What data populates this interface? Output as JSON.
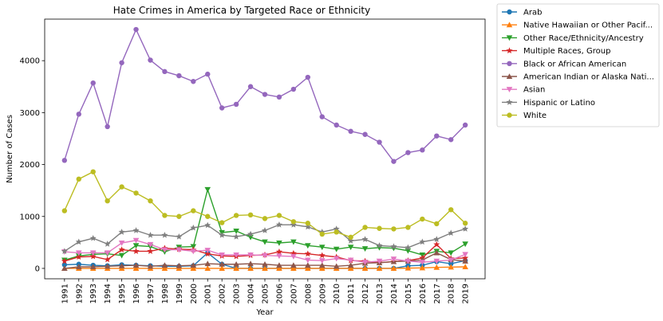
{
  "chart_data": {
    "type": "line",
    "title": "Hate Crimes in America by Targeted Race or Ethnicity",
    "xlabel": "Year",
    "ylabel": "Number of Cases",
    "x": [
      1991,
      1992,
      1993,
      1994,
      1995,
      1996,
      1997,
      1998,
      1999,
      2000,
      2001,
      2002,
      2003,
      2004,
      2005,
      2006,
      2007,
      2008,
      2009,
      2010,
      2011,
      2012,
      2013,
      2014,
      2015,
      2016,
      2017,
      2018,
      2019
    ],
    "ylim": [
      -200,
      4800
    ],
    "yticks": [
      0,
      1000,
      2000,
      3000,
      4000
    ],
    "grid": false,
    "legend_position": "outside-right",
    "series": [
      {
        "name": "Arab",
        "color": "#1f77b4",
        "marker": "circle",
        "values": [
          70,
          80,
          60,
          50,
          70,
          60,
          50,
          40,
          40,
          50,
          300,
          80,
          0,
          0,
          0,
          0,
          0,
          0,
          0,
          0,
          0,
          0,
          0,
          0,
          50,
          60,
          130,
          90,
          150
        ]
      },
      {
        "name": "Native Hawaiian or Other Pacif...",
        "color": "#ff7f0e",
        "marker": "triangle-up",
        "values": [
          0,
          0,
          0,
          0,
          0,
          0,
          0,
          0,
          0,
          0,
          0,
          0,
          0,
          0,
          0,
          0,
          0,
          0,
          0,
          0,
          0,
          0,
          0,
          0,
          5,
          10,
          20,
          25,
          30
        ]
      },
      {
        "name": "Other Race/Ethnicity/Ancestry",
        "color": "#2ca02c",
        "marker": "triangle-down",
        "values": [
          160,
          240,
          270,
          280,
          250,
          440,
          420,
          320,
          410,
          420,
          1520,
          690,
          720,
          600,
          510,
          490,
          510,
          440,
          410,
          370,
          410,
          380,
          400,
          390,
          340,
          260,
          330,
          300,
          470
        ]
      },
      {
        "name": "Multiple Races, Group",
        "color": "#d62728",
        "marker": "star",
        "values": [
          140,
          220,
          230,
          170,
          360,
          330,
          330,
          390,
          370,
          360,
          280,
          240,
          230,
          250,
          260,
          320,
          290,
          280,
          250,
          220,
          150,
          140,
          110,
          130,
          150,
          200,
          460,
          190,
          200
        ]
      },
      {
        "name": "Black or African American",
        "color": "#9467bd",
        "marker": "circle",
        "values": [
          2080,
          2970,
          3570,
          2730,
          3960,
          4600,
          4010,
          3790,
          3710,
          3600,
          3740,
          3090,
          3160,
          3500,
          3350,
          3300,
          3450,
          3680,
          2920,
          2760,
          2640,
          2580,
          2430,
          2060,
          2230,
          2280,
          2550,
          2480,
          2760
        ]
      },
      {
        "name": "American Indian or Alaska Nati...",
        "color": "#8c564b",
        "marker": "triangle-up",
        "values": [
          0,
          30,
          30,
          40,
          50,
          60,
          40,
          60,
          50,
          60,
          90,
          80,
          80,
          90,
          80,
          60,
          60,
          60,
          60,
          40,
          60,
          100,
          110,
          130,
          140,
          160,
          300,
          170,
          140
        ]
      },
      {
        "name": "Asian",
        "color": "#e377c2",
        "marker": "triangle-down",
        "values": [
          320,
          300,
          300,
          300,
          490,
          540,
          460,
          360,
          360,
          330,
          350,
          260,
          260,
          260,
          250,
          240,
          230,
          160,
          150,
          190,
          160,
          120,
          140,
          180,
          140,
          120,
          140,
          160,
          270
        ]
      },
      {
        "name": "Hispanic or Latino",
        "color": "#7f7f7f",
        "marker": "star",
        "values": [
          330,
          510,
          580,
          470,
          700,
          730,
          640,
          640,
          610,
          780,
          830,
          640,
          610,
          660,
          730,
          840,
          840,
          800,
          700,
          760,
          530,
          560,
          440,
          420,
          400,
          510,
          560,
          680,
          760
        ]
      },
      {
        "name": "White",
        "color": "#bcbd22",
        "marker": "circle",
        "values": [
          1110,
          1720,
          1860,
          1300,
          1570,
          1450,
          1300,
          1020,
          1000,
          1110,
          1000,
          880,
          1020,
          1030,
          960,
          1020,
          900,
          870,
          660,
          700,
          600,
          790,
          770,
          760,
          790,
          950,
          860,
          1130,
          870
        ]
      }
    ]
  }
}
